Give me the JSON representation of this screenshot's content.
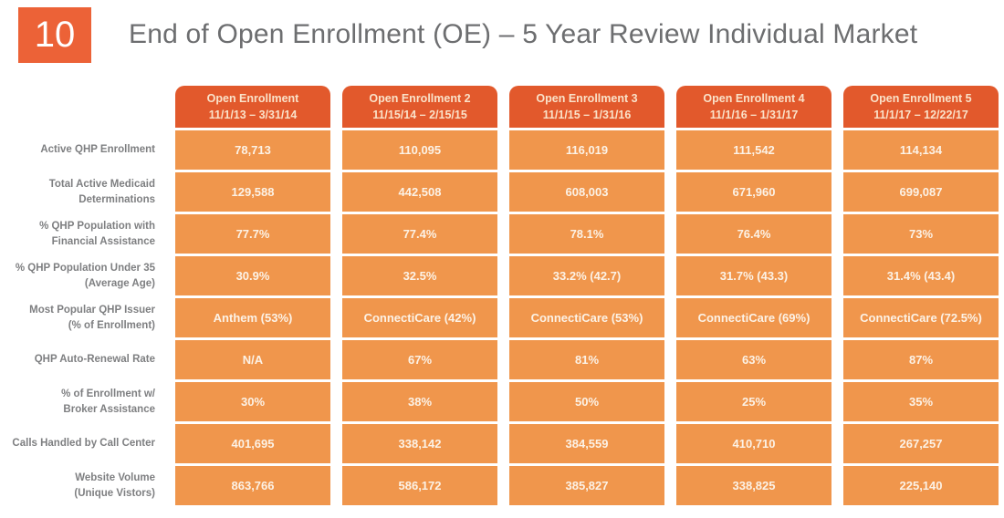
{
  "slide": {
    "badge_number": "10",
    "title": "End of Open Enrollment (OE) – 5 Year Review Individual Market"
  },
  "colors": {
    "badge_orange": "#EC6237",
    "header_orange": "#E2592C",
    "cell_orange": "#F0964C",
    "header_text_cream": "#FAE2C9",
    "cell_text_cream": "#FCF2E6",
    "title_gray": "#6D6E70",
    "row_label_gray": "#7E7F81"
  },
  "chart_data": {
    "type": "table",
    "title": "End of Open Enrollment (OE) – 5 Year Review Individual Market",
    "columns": [
      {
        "label": "Open Enrollment",
        "dates": "11/1/13 – 3/31/14"
      },
      {
        "label": "Open Enrollment 2",
        "dates": "11/15/14 – 2/15/15"
      },
      {
        "label": "Open Enrollment 3",
        "dates": "11/1/15 – 1/31/16"
      },
      {
        "label": "Open Enrollment 4",
        "dates": "11/1/16 – 1/31/17"
      },
      {
        "label": "Open Enrollment 5",
        "dates": "11/1/17 – 12/22/17"
      }
    ],
    "rows": [
      {
        "label": "Active QHP Enrollment",
        "values": [
          "78,713",
          "110,095",
          "116,019",
          "111,542",
          "114,134"
        ]
      },
      {
        "label": "Total Active Medicaid\nDeterminations",
        "values": [
          "129,588",
          "442,508",
          "608,003",
          "671,960",
          "699,087"
        ]
      },
      {
        "label": "% QHP Population with\nFinancial Assistance",
        "values": [
          "77.7%",
          "77.4%",
          "78.1%",
          "76.4%",
          "73%"
        ]
      },
      {
        "label": "% QHP Population Under 35\n(Average Age)",
        "values": [
          "30.9%",
          "32.5%",
          "33.2% (42.7)",
          "31.7% (43.3)",
          "31.4% (43.4)"
        ]
      },
      {
        "label": "Most Popular QHP Issuer\n(% of Enrollment)",
        "values": [
          "Anthem (53%)",
          "ConnectiCare (42%)",
          "ConnectiCare (53%)",
          "ConnectiCare (69%)",
          "ConnectiCare (72.5%)"
        ]
      },
      {
        "label": "QHP Auto-Renewal Rate",
        "values": [
          "N/A",
          "67%",
          "81%",
          "63%",
          "87%"
        ]
      },
      {
        "label": "% of Enrollment w/\nBroker Assistance",
        "values": [
          "30%",
          "38%",
          "50%",
          "25%",
          "35%"
        ]
      },
      {
        "label": "Calls Handled by Call Center",
        "values": [
          "401,695",
          "338,142",
          "384,559",
          "410,710",
          "267,257"
        ]
      },
      {
        "label": "Website Volume\n(Unique Vistors)",
        "values": [
          "863,766",
          "586,172",
          "385,827",
          "338,825",
          "225,140"
        ]
      }
    ]
  }
}
